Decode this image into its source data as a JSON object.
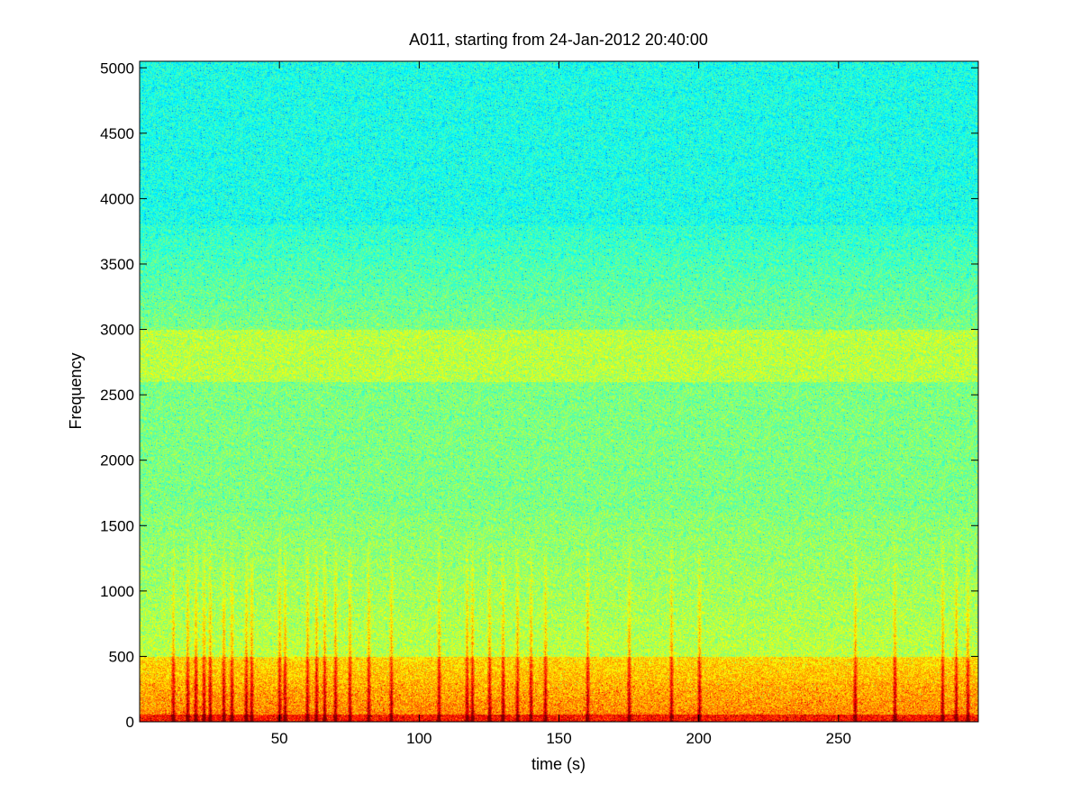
{
  "chart_data": {
    "type": "heatmap",
    "title": "A011, starting from 24-Jan-2012 20:40:00",
    "xlabel": "time (s)",
    "ylabel": "Frequency",
    "xlim": [
      0,
      300
    ],
    "ylim": [
      0,
      5050
    ],
    "x_ticks": [
      50,
      100,
      150,
      200,
      250
    ],
    "x_tick_labels": [
      "50",
      "100",
      "150",
      "200",
      "250"
    ],
    "y_ticks": [
      0,
      500,
      1000,
      1500,
      2000,
      2500,
      3000,
      3500,
      4000,
      4500,
      5000
    ],
    "y_tick_labels": [
      "0",
      "500",
      "1000",
      "1500",
      "2000",
      "2500",
      "3000",
      "3500",
      "4000",
      "4500",
      "5000"
    ],
    "colormap": "jet",
    "grid": false,
    "legend": "none",
    "colors": {
      "high": "#c81e00",
      "mid_high": "#f0f000",
      "mid": "#9ef05a",
      "low": "#2ef0d0",
      "noise": "#1e78e6"
    }
  }
}
